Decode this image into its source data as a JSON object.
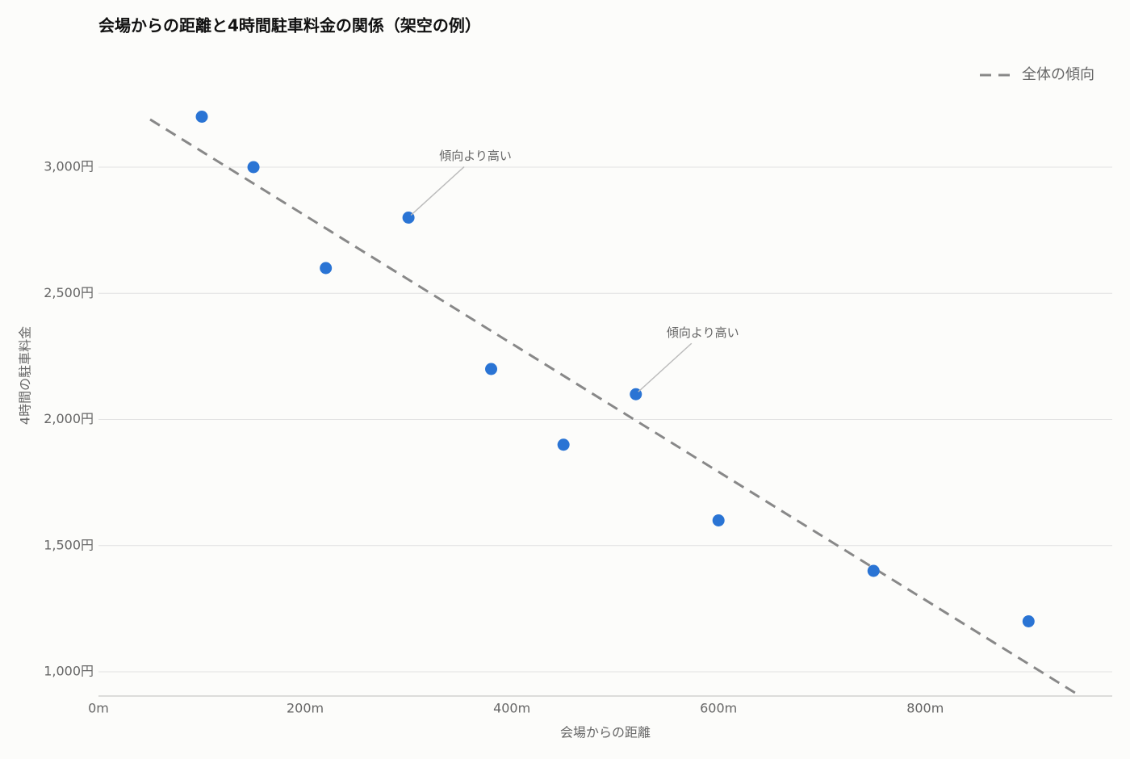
{
  "chart_data": {
    "type": "scatter",
    "title": "会場からの距離と4時間駐車料金の関係（架空の例）",
    "xlabel": "会場からの距離",
    "ylabel": "4時間の駐車料金",
    "x": [
      100,
      150,
      220,
      300,
      380,
      450,
      520,
      600,
      750,
      900
    ],
    "values": [
      3200,
      3000,
      2600,
      2800,
      2200,
      1900,
      2100,
      1600,
      1400,
      1200
    ],
    "color": "#2a74d4",
    "trend": {
      "name": "全体の傾向",
      "type": "line",
      "x": [
        50,
        950
      ],
      "values": [
        3189,
        904
      ],
      "color": "#888888",
      "dashed": true
    },
    "annotations": [
      {
        "text": "傾向より高い",
        "x": 300,
        "y": 2800
      },
      {
        "text": "傾向より高い",
        "x": 520,
        "y": 2100
      }
    ],
    "xlim": [
      0,
      981
    ],
    "ylim": [
      904,
      3300
    ],
    "xticks": [
      {
        "value": 0,
        "label": "0m"
      },
      {
        "value": 200,
        "label": "200m"
      },
      {
        "value": 400,
        "label": "400m"
      },
      {
        "value": 600,
        "label": "600m"
      },
      {
        "value": 800,
        "label": "800m"
      }
    ],
    "yticks": [
      {
        "value": 1000,
        "label": "1,000円"
      },
      {
        "value": 1500,
        "label": "1,500円"
      },
      {
        "value": 2000,
        "label": "2,000円"
      },
      {
        "value": 2500,
        "label": "2,500円"
      },
      {
        "value": 3000,
        "label": "3,000円"
      }
    ],
    "grid": true,
    "legend": "upper right"
  }
}
